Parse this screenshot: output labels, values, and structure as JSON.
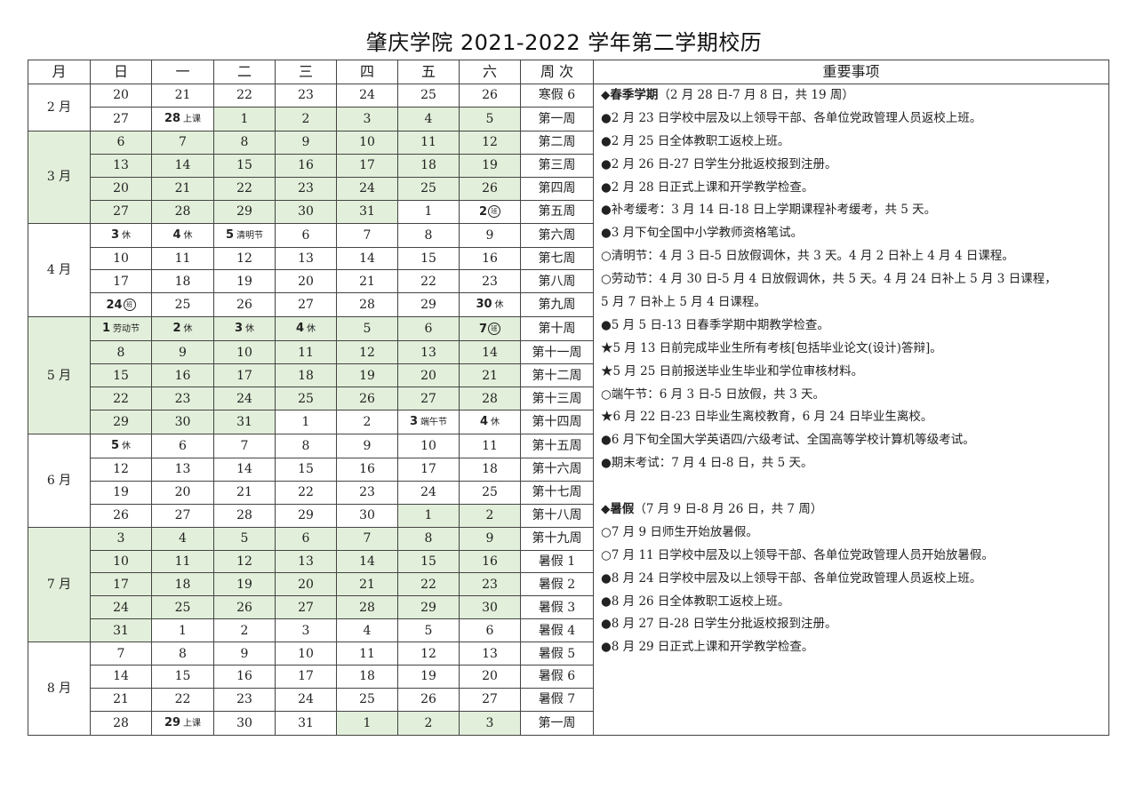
{
  "title": "肇庆学院 2021-2022 学年第二学期校历",
  "colors": {
    "shaded": "#e2efda",
    "border": "#444444"
  },
  "headers": [
    "月",
    "日",
    "一",
    "二",
    "三",
    "四",
    "五",
    "六",
    "周 次",
    "重要事项"
  ],
  "months": [
    {
      "label": "2 月",
      "shaded": false,
      "weeks": [
        {
          "days": [
            "20",
            "21",
            "22",
            "23",
            "24",
            "25",
            "26"
          ],
          "green": [],
          "week": "寒假 6"
        },
        {
          "days": [
            "27",
            {
              "n": "28",
              "s": "上课"
            },
            "1",
            "2",
            "3",
            "4",
            "5"
          ],
          "green": [
            2,
            3,
            4,
            5,
            6
          ],
          "week": "第一周"
        }
      ]
    },
    {
      "label": "3 月",
      "shaded": true,
      "weeks": [
        {
          "days": [
            "6",
            "7",
            "8",
            "9",
            "10",
            "11",
            "12"
          ],
          "green": [
            0,
            1,
            2,
            3,
            4,
            5,
            6
          ],
          "week": "第二周"
        },
        {
          "days": [
            "13",
            "14",
            "15",
            "16",
            "17",
            "18",
            "19"
          ],
          "green": [
            0,
            1,
            2,
            3,
            4,
            5,
            6
          ],
          "week": "第三周"
        },
        {
          "days": [
            "20",
            "21",
            "22",
            "23",
            "24",
            "25",
            "26"
          ],
          "green": [
            0,
            1,
            2,
            3,
            4,
            5,
            6
          ],
          "week": "第四周"
        },
        {
          "days": [
            "27",
            "28",
            "29",
            "30",
            "31",
            "1",
            {
              "n": "2",
              "c": "班"
            }
          ],
          "green": [
            0,
            1,
            2,
            3,
            4
          ],
          "week": "第五周"
        }
      ]
    },
    {
      "label": "4 月",
      "shaded": false,
      "weeks": [
        {
          "days": [
            {
              "n": "3",
              "s": "休"
            },
            {
              "n": "4",
              "s": "休"
            },
            {
              "n": "5",
              "s": "清明节"
            },
            "6",
            "7",
            "8",
            "9"
          ],
          "green": [],
          "week": "第六周"
        },
        {
          "days": [
            "10",
            "11",
            "12",
            "13",
            "14",
            "15",
            "16"
          ],
          "green": [],
          "week": "第七周"
        },
        {
          "days": [
            "17",
            "18",
            "19",
            "20",
            "21",
            "22",
            "23"
          ],
          "green": [],
          "week": "第八周"
        },
        {
          "days": [
            {
              "n": "24",
              "c": "班"
            },
            "25",
            "26",
            "27",
            "28",
            "29",
            {
              "n": "30",
              "s": "休"
            }
          ],
          "green": [],
          "week": "第九周"
        }
      ]
    },
    {
      "label": "5 月",
      "shaded": true,
      "weeks": [
        {
          "days": [
            {
              "n": "1",
              "s": "劳动节"
            },
            {
              "n": "2",
              "s": "休"
            },
            {
              "n": "3",
              "s": "休"
            },
            {
              "n": "4",
              "s": "休"
            },
            "5",
            "6",
            {
              "n": "7",
              "c": "班"
            }
          ],
          "green": [
            0,
            1,
            2,
            3,
            4,
            5,
            6
          ],
          "week": "第十周"
        },
        {
          "days": [
            "8",
            "9",
            "10",
            "11",
            "12",
            "13",
            "14"
          ],
          "green": [
            0,
            1,
            2,
            3,
            4,
            5,
            6
          ],
          "week": "第十一周"
        },
        {
          "days": [
            "15",
            "16",
            "17",
            "18",
            "19",
            "20",
            "21"
          ],
          "green": [
            0,
            1,
            2,
            3,
            4,
            5,
            6
          ],
          "week": "第十二周"
        },
        {
          "days": [
            "22",
            "23",
            "24",
            "25",
            "26",
            "27",
            "28"
          ],
          "green": [
            0,
            1,
            2,
            3,
            4,
            5,
            6
          ],
          "week": "第十三周"
        },
        {
          "days": [
            "29",
            "30",
            "31",
            "1",
            "2",
            {
              "n": "3",
              "s": "端午节"
            },
            {
              "n": "4",
              "s": "休"
            }
          ],
          "green": [
            0,
            1,
            2
          ],
          "week": "第十四周"
        }
      ]
    },
    {
      "label": "6 月",
      "shaded": false,
      "weeks": [
        {
          "days": [
            {
              "n": "5",
              "s": "休"
            },
            "6",
            "7",
            "8",
            "9",
            "10",
            "11"
          ],
          "green": [],
          "week": "第十五周"
        },
        {
          "days": [
            "12",
            "13",
            "14",
            "15",
            "16",
            "17",
            "18"
          ],
          "green": [],
          "week": "第十六周"
        },
        {
          "days": [
            "19",
            "20",
            "21",
            "22",
            "23",
            "24",
            "25"
          ],
          "green": [],
          "week": "第十七周"
        },
        {
          "days": [
            "26",
            "27",
            "28",
            "29",
            "30",
            "1",
            "2"
          ],
          "green": [
            5,
            6
          ],
          "week": "第十八周"
        }
      ]
    },
    {
      "label": "7 月",
      "shaded": true,
      "weeks": [
        {
          "days": [
            "3",
            "4",
            "5",
            "6",
            "7",
            "8",
            "9"
          ],
          "green": [
            0,
            1,
            2,
            3,
            4,
            5,
            6
          ],
          "week": "第十九周"
        },
        {
          "days": [
            "10",
            "11",
            "12",
            "13",
            "14",
            "15",
            "16"
          ],
          "green": [
            0,
            1,
            2,
            3,
            4,
            5,
            6
          ],
          "week": "暑假 1"
        },
        {
          "days": [
            "17",
            "18",
            "19",
            "20",
            "21",
            "22",
            "23"
          ],
          "green": [
            0,
            1,
            2,
            3,
            4,
            5,
            6
          ],
          "week": "暑假 2"
        },
        {
          "days": [
            "24",
            "25",
            "26",
            "27",
            "28",
            "29",
            "30"
          ],
          "green": [
            0,
            1,
            2,
            3,
            4,
            5,
            6
          ],
          "week": "暑假 3"
        },
        {
          "days": [
            "31",
            "1",
            "2",
            "3",
            "4",
            "5",
            "6"
          ],
          "green": [
            0
          ],
          "week": "暑假 4"
        }
      ]
    },
    {
      "label": "8 月",
      "shaded": false,
      "weeks": [
        {
          "days": [
            "7",
            "8",
            "9",
            "10",
            "11",
            "12",
            "13"
          ],
          "green": [],
          "week": "暑假 5"
        },
        {
          "days": [
            "14",
            "15",
            "16",
            "17",
            "18",
            "19",
            "20"
          ],
          "green": [],
          "week": "暑假 6"
        },
        {
          "days": [
            "21",
            "22",
            "23",
            "24",
            "25",
            "26",
            "27"
          ],
          "green": [],
          "week": "暑假 7"
        },
        {
          "days": [
            "28",
            {
              "n": "29",
              "s": "上课"
            },
            "30",
            "31",
            "1",
            "2",
            "3"
          ],
          "green": [
            4,
            5,
            6
          ],
          "week": "第一周"
        }
      ]
    }
  ],
  "notes": [
    {
      "mark": "◆",
      "bold": "春季学期",
      "text": "（2 月 28 日-7 月 8 日，共 19 周）"
    },
    {
      "mark": "●",
      "text": "2 月 23 日学校中层及以上领导干部、各单位党政管理人员返校上班。"
    },
    {
      "mark": "●",
      "text": "2 月 25 日全体教职工返校上班。"
    },
    {
      "mark": "●",
      "text": "2 月 26 日-27 日学生分批返校报到注册。"
    },
    {
      "mark": "●",
      "text": "2 月 28 日正式上课和开学教学检查。"
    },
    {
      "mark": "●",
      "text": "补考缓考：3 月 14 日-18 日上学期课程补考缓考，共 5 天。"
    },
    {
      "mark": "●",
      "text": "3 月下旬全国中小学教师资格笔试。"
    },
    {
      "mark": "○",
      "text": "清明节：4 月 3 日-5 日放假调休，共 3 天。4 月 2 日补上 4 月 4 日课程。"
    },
    {
      "mark": "○",
      "text": "劳动节：4 月 30 日-5 月 4 日放假调休，共 5 天。4 月 24 日补上 5 月 3 日课程，"
    },
    {
      "mark": "",
      "text": "5 月 7 日补上 5 月 4 日课程。"
    },
    {
      "mark": "●",
      "text": "5 月 5 日-13 日春季学期中期教学检查。"
    },
    {
      "mark": "★",
      "text": "5 月 13 日前完成毕业生所有考核[包括毕业论文(设计)答辩]。"
    },
    {
      "mark": "★",
      "text": "5 月 25 日前报送毕业生毕业和学位审核材料。"
    },
    {
      "mark": "○",
      "text": "端午节：6 月 3 日-5 日放假，共 3 天。"
    },
    {
      "mark": "★",
      "text": "6 月 22 日-23 日毕业生离校教育，6 月 24 日毕业生离校。"
    },
    {
      "mark": "●",
      "text": "6 月下旬全国大学英语四/六级考试、全国高等学校计算机等级考试。"
    },
    {
      "mark": "●",
      "text": "期末考试：7 月 4 日-8 日，共 5 天。"
    },
    {
      "mark": "",
      "text": ""
    },
    {
      "mark": "◆",
      "bold": "暑假",
      "text": "（7 月 9 日-8 月 26 日，共 7 周）"
    },
    {
      "mark": "○",
      "text": "7 月 9 日师生开始放暑假。"
    },
    {
      "mark": "○",
      "text": "7 月 11 日学校中层及以上领导干部、各单位党政管理人员开始放暑假。"
    },
    {
      "mark": "●",
      "text": "8 月 24 日学校中层及以上领导干部、各单位党政管理人员返校上班。"
    },
    {
      "mark": "●",
      "text": "8 月 26 日全体教职工返校上班。"
    },
    {
      "mark": "●",
      "text": "8 月 27 日-28 日学生分批返校报到注册。"
    },
    {
      "mark": "●",
      "text": "8 月 29 日正式上课和开学教学检查。"
    }
  ]
}
